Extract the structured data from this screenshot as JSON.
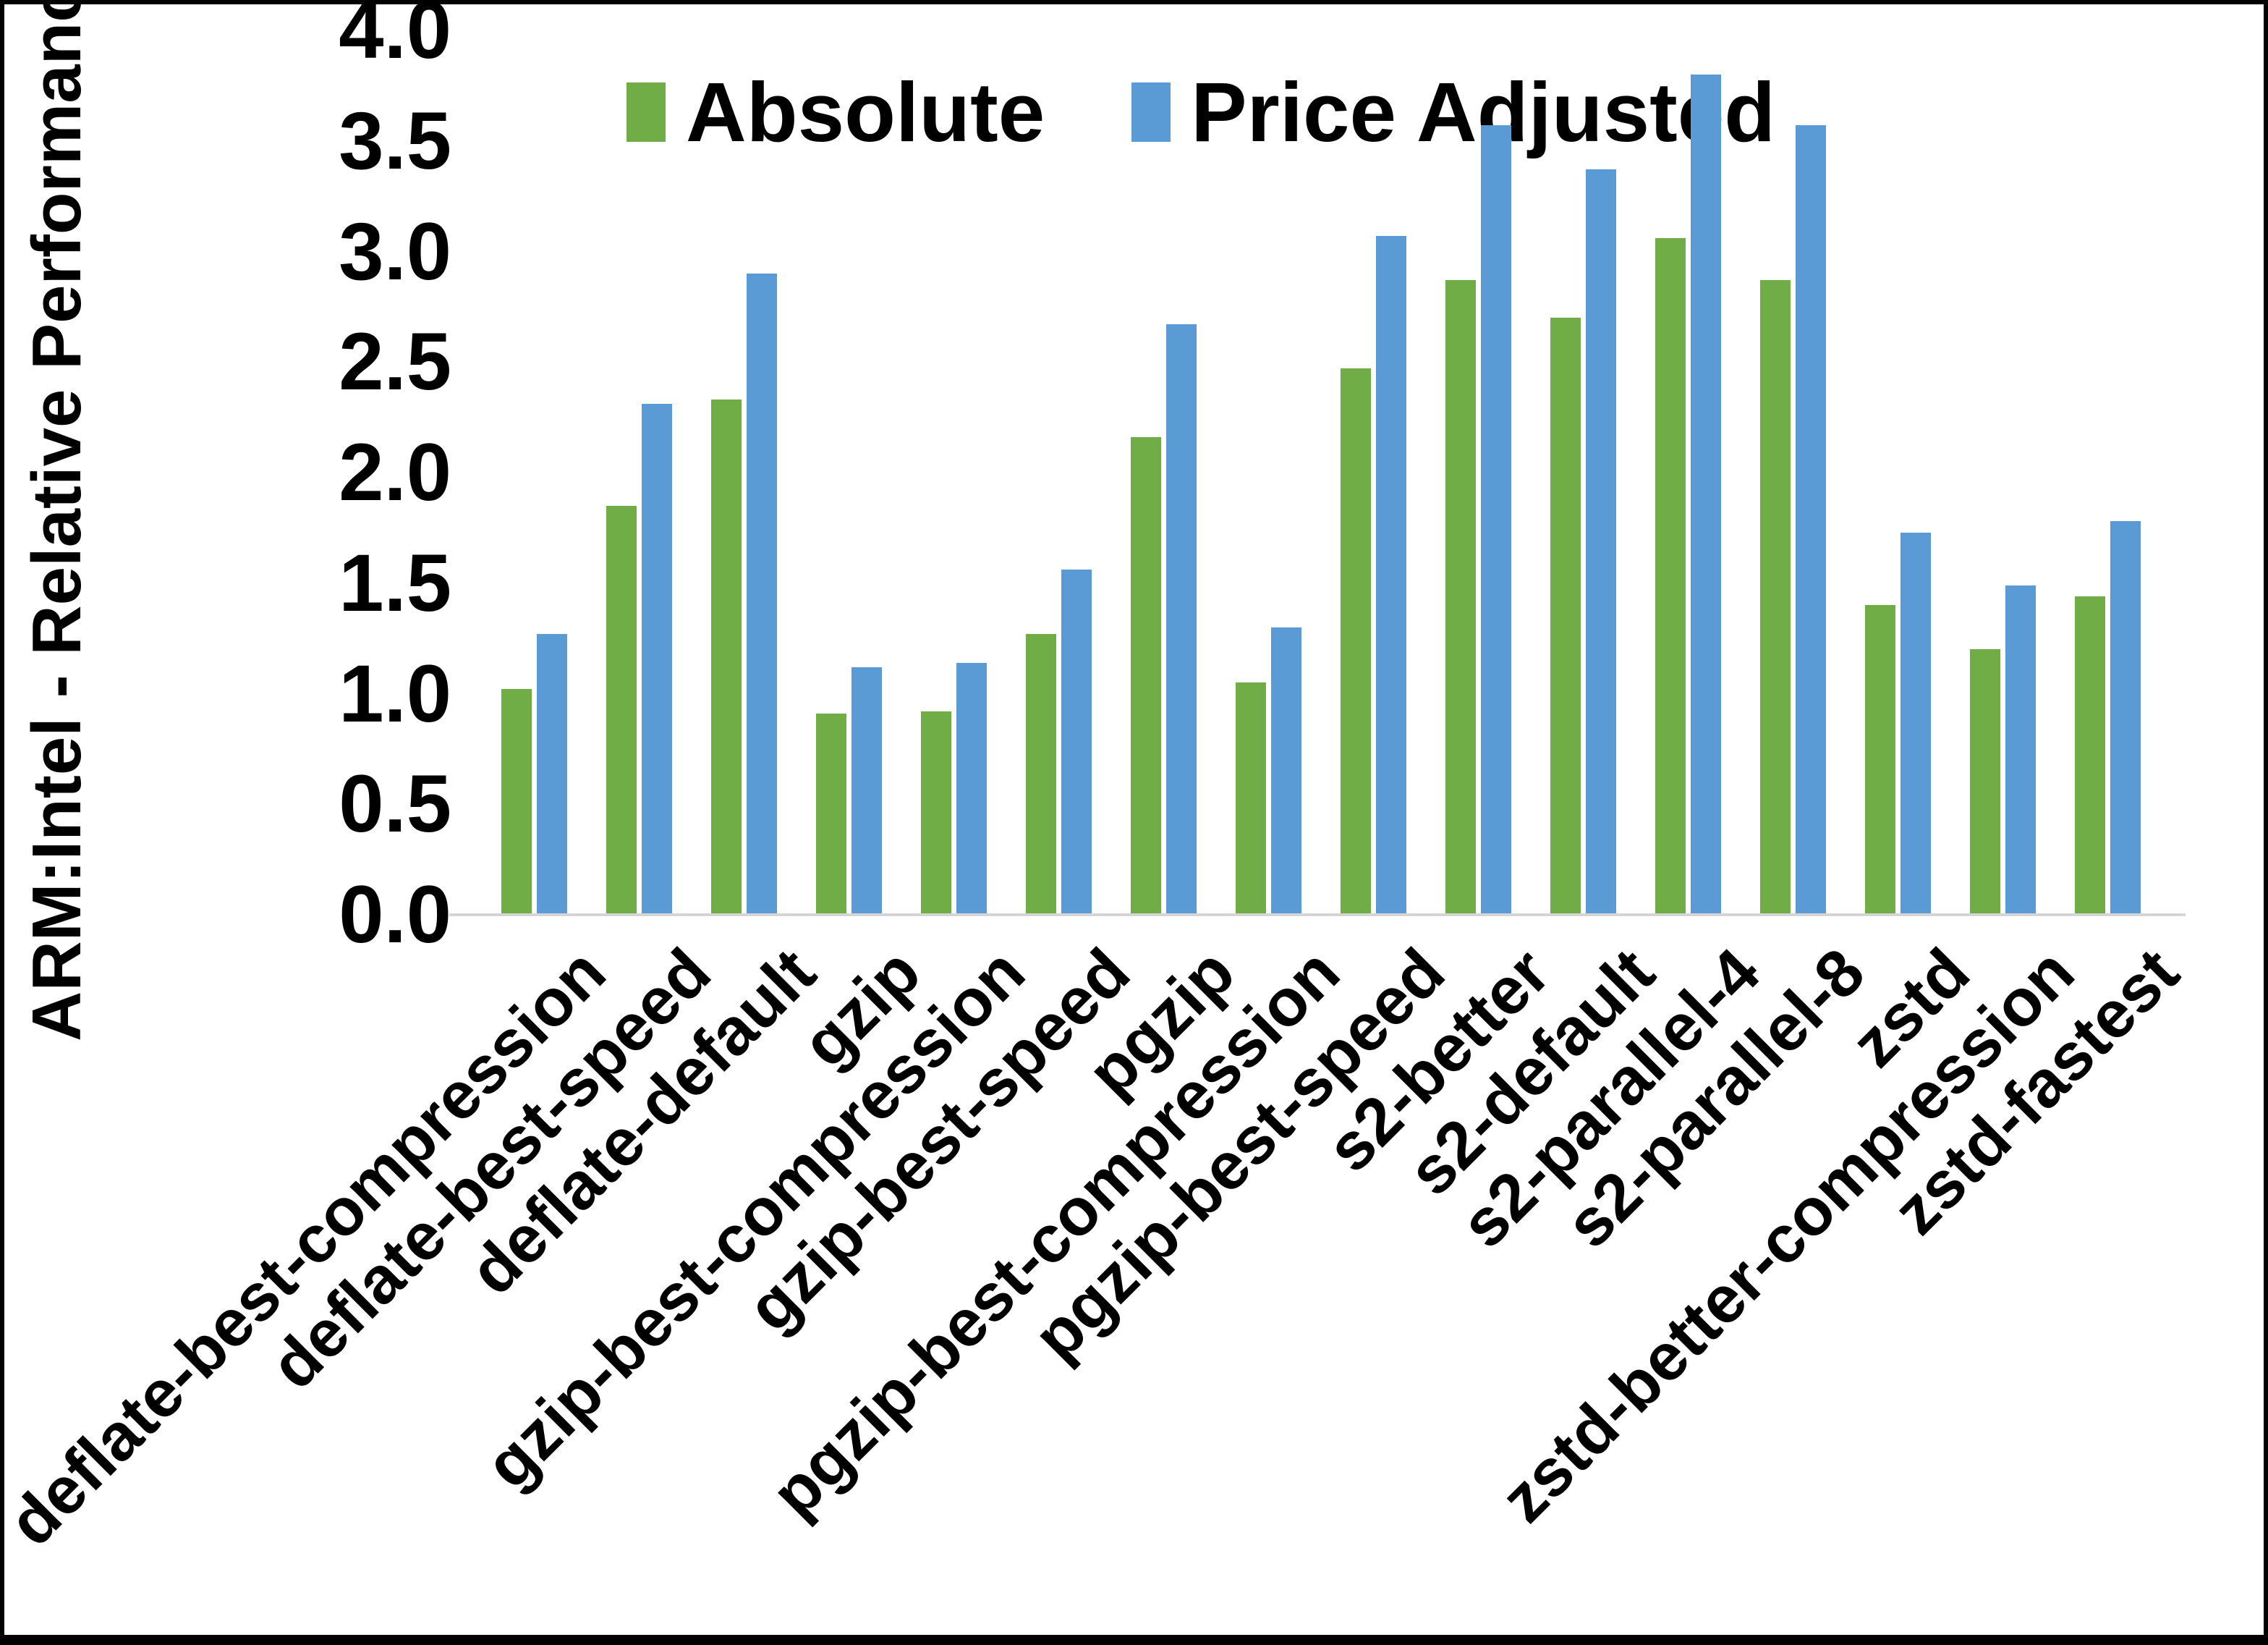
{
  "y_axis": {
    "title": "ARM:Intel - Relative Performance",
    "tick_labels": [
      "4.0",
      "3.5",
      "3.0",
      "2.5",
      "2.0",
      "1.5",
      "1.0",
      "0.5",
      "0.0"
    ],
    "max": 4.0,
    "min": 0.0
  },
  "legend": {
    "items": [
      {
        "label": "Absolute",
        "color": "#70AD47"
      },
      {
        "label": "Price Adjusted",
        "color": "#5B9BD5"
      }
    ]
  },
  "chart_data": {
    "type": "bar",
    "title": "",
    "xlabel": "",
    "ylabel": "ARM:Intel - Relative Performance",
    "ylim": [
      0.0,
      4.0
    ],
    "grid": false,
    "legend_position": "top-center",
    "categories": [
      "deflate-best-compression",
      "deflate-best-speed",
      "deflate-default",
      "gzip",
      "gzip-best-compression",
      "gzip-best-speed",
      "pgzip",
      "pgzip-best-compression",
      "pgzip-best-speed",
      "s2-better",
      "s2-default",
      "s2-parallel-4",
      "s2-parallel-8",
      "zstd",
      "zstd-better-compression",
      "zstd-fastest"
    ],
    "series": [
      {
        "name": "Absolute",
        "color": "#70AD47",
        "values": [
          1.02,
          1.85,
          2.33,
          0.91,
          0.92,
          1.27,
          2.16,
          1.05,
          2.47,
          2.87,
          2.7,
          3.06,
          2.87,
          1.4,
          1.2,
          1.44
        ]
      },
      {
        "name": "Price Adjusted",
        "color": "#5B9BD5",
        "values": [
          1.27,
          2.31,
          2.9,
          1.12,
          1.14,
          1.56,
          2.67,
          1.3,
          3.07,
          3.57,
          3.37,
          3.8,
          3.57,
          1.73,
          1.49,
          1.78
        ]
      }
    ]
  }
}
